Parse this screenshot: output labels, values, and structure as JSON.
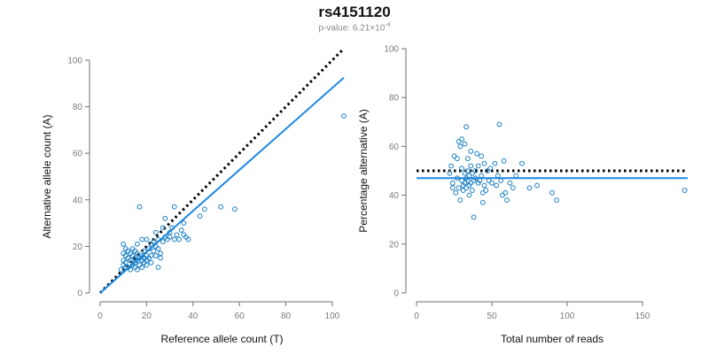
{
  "title": "rs4151120",
  "subtitle": {
    "prefix": "p-value: 6.21×10",
    "exponent": "-4"
  },
  "chart_data": [
    {
      "type": "scatter",
      "xlabel": "Reference allele count (T)",
      "ylabel": "Alternative allele count (A)",
      "xlim": [
        0,
        105
      ],
      "ylim": [
        0,
        100
      ],
      "xticks": [
        0,
        20,
        40,
        60,
        80,
        100
      ],
      "yticks": [
        0,
        20,
        40,
        60,
        80,
        100
      ],
      "grid": false,
      "legend": "none",
      "point_color": "#1a7fc4",
      "lines": [
        {
          "style": "dotted",
          "color": "#000000",
          "x": [
            0,
            105
          ],
          "y": [
            0,
            105
          ]
        },
        {
          "style": "solid",
          "color": "#1e88e5",
          "x": [
            0,
            105
          ],
          "y": [
            0,
            92.5
          ]
        }
      ],
      "points": [
        [
          9,
          10
        ],
        [
          10,
          12
        ],
        [
          10,
          14
        ],
        [
          10,
          17
        ],
        [
          10,
          21
        ],
        [
          11,
          11
        ],
        [
          11,
          13
        ],
        [
          11,
          16
        ],
        [
          11,
          19
        ],
        [
          12,
          11
        ],
        [
          12,
          15
        ],
        [
          12,
          18
        ],
        [
          13,
          10
        ],
        [
          13,
          14
        ],
        [
          13,
          17
        ],
        [
          14,
          12
        ],
        [
          14,
          16
        ],
        [
          14,
          19
        ],
        [
          15,
          11
        ],
        [
          15,
          13
        ],
        [
          15,
          15
        ],
        [
          15,
          18
        ],
        [
          16,
          10
        ],
        [
          16,
          14
        ],
        [
          16,
          17
        ],
        [
          16,
          21
        ],
        [
          17,
          12
        ],
        [
          17,
          15
        ],
        [
          17,
          37
        ],
        [
          18,
          11
        ],
        [
          18,
          14
        ],
        [
          18,
          16
        ],
        [
          18,
          23
        ],
        [
          19,
          13
        ],
        [
          19,
          15
        ],
        [
          19,
          18
        ],
        [
          20,
          12
        ],
        [
          20,
          14
        ],
        [
          20,
          16
        ],
        [
          20,
          23
        ],
        [
          21,
          15
        ],
        [
          21,
          19
        ],
        [
          22,
          13
        ],
        [
          22,
          16
        ],
        [
          22,
          21
        ],
        [
          23,
          18
        ],
        [
          23,
          22
        ],
        [
          24,
          16
        ],
        [
          24,
          20
        ],
        [
          24,
          26
        ],
        [
          25,
          11
        ],
        [
          25,
          19
        ],
        [
          25,
          23
        ],
        [
          26,
          15
        ],
        [
          26,
          17
        ],
        [
          27,
          22
        ],
        [
          27,
          28
        ],
        [
          28,
          24
        ],
        [
          28,
          32
        ],
        [
          29,
          23
        ],
        [
          30,
          24
        ],
        [
          30,
          26
        ],
        [
          31,
          28
        ],
        [
          32,
          23
        ],
        [
          32,
          37
        ],
        [
          33,
          25
        ],
        [
          34,
          23
        ],
        [
          35,
          27
        ],
        [
          36,
          25
        ],
        [
          36,
          30
        ],
        [
          37,
          24
        ],
        [
          38,
          23
        ],
        [
          43,
          33
        ],
        [
          45,
          36
        ],
        [
          52,
          37
        ],
        [
          58,
          36
        ],
        [
          105,
          76
        ]
      ]
    },
    {
      "type": "scatter",
      "xlabel": "Total number of reads",
      "ylabel": "Percentage alternative (A)",
      "xlim": [
        0,
        180
      ],
      "ylim": [
        0,
        100
      ],
      "xticks": [
        0,
        50,
        100,
        150
      ],
      "yticks": [
        0,
        20,
        40,
        60,
        80,
        100
      ],
      "grid": false,
      "legend": "none",
      "point_color": "#1a7fc4",
      "lines": [
        {
          "style": "dotted",
          "color": "#000000",
          "x": [
            0,
            180
          ],
          "y": [
            50,
            50
          ]
        },
        {
          "style": "solid",
          "color": "#1e88e5",
          "x": [
            0,
            180
          ],
          "y": [
            47,
            47
          ]
        }
      ],
      "points": [
        [
          22,
          49
        ],
        [
          23,
          52
        ],
        [
          24,
          45
        ],
        [
          24,
          43
        ],
        [
          25,
          56
        ],
        [
          26,
          41
        ],
        [
          27,
          55
        ],
        [
          27,
          47
        ],
        [
          28,
          62
        ],
        [
          28,
          43
        ],
        [
          29,
          60
        ],
        [
          29,
          38
        ],
        [
          30,
          63
        ],
        [
          30,
          51
        ],
        [
          30,
          46
        ],
        [
          31,
          44
        ],
        [
          31,
          42
        ],
        [
          32,
          61
        ],
        [
          32,
          49
        ],
        [
          32,
          45
        ],
        [
          33,
          68
        ],
        [
          33,
          47
        ],
        [
          33,
          43
        ],
        [
          34,
          55
        ],
        [
          34,
          50
        ],
        [
          34,
          46
        ],
        [
          35,
          48
        ],
        [
          35,
          44
        ],
        [
          35,
          40
        ],
        [
          36,
          58
        ],
        [
          36,
          52
        ],
        [
          36,
          45
        ],
        [
          37,
          49
        ],
        [
          37,
          42
        ],
        [
          38,
          31
        ],
        [
          38,
          46
        ],
        [
          39,
          50
        ],
        [
          39,
          47
        ],
        [
          40,
          57
        ],
        [
          41,
          52
        ],
        [
          41,
          45
        ],
        [
          42,
          46
        ],
        [
          43,
          56
        ],
        [
          43,
          48
        ],
        [
          44,
          41
        ],
        [
          44,
          37
        ],
        [
          45,
          53
        ],
        [
          45,
          44
        ],
        [
          46,
          42
        ],
        [
          47,
          50
        ],
        [
          48,
          46
        ],
        [
          49,
          51
        ],
        [
          50,
          45
        ],
        [
          52,
          53
        ],
        [
          53,
          44
        ],
        [
          54,
          48
        ],
        [
          55,
          69
        ],
        [
          56,
          46
        ],
        [
          57,
          40
        ],
        [
          58,
          54
        ],
        [
          59,
          41
        ],
        [
          60,
          38
        ],
        [
          62,
          45
        ],
        [
          64,
          43
        ],
        [
          66,
          48
        ],
        [
          70,
          53
        ],
        [
          75,
          43
        ],
        [
          80,
          44
        ],
        [
          90,
          41
        ],
        [
          93,
          38
        ],
        [
          178,
          42
        ]
      ]
    }
  ]
}
